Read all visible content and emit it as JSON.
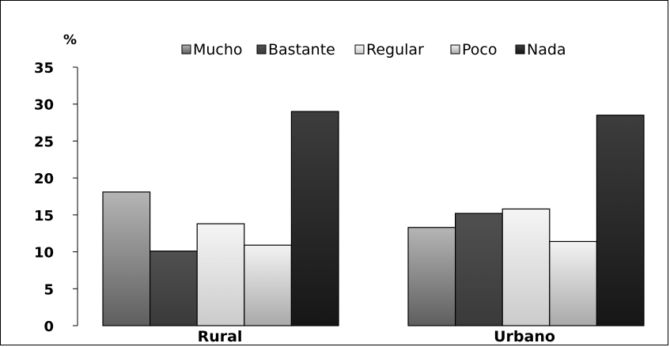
{
  "chart_data": {
    "type": "bar",
    "unit_label": "%",
    "categories": [
      "Rural",
      "Urbano"
    ],
    "series": [
      {
        "name": "Mucho",
        "values": [
          18.1,
          13.3
        ]
      },
      {
        "name": "Bastante",
        "values": [
          10.1,
          15.2
        ]
      },
      {
        "name": "Regular",
        "values": [
          13.8,
          15.8
        ]
      },
      {
        "name": "Poco",
        "values": [
          10.9,
          11.4
        ]
      },
      {
        "name": "Nada",
        "values": [
          29.0,
          28.5
        ]
      }
    ],
    "series_colors": [
      {
        "top": "#b5b5b5",
        "bottom": "#5e5e5e"
      },
      {
        "top": "#505050",
        "bottom": "#3a3a3a"
      },
      {
        "top": "#f5f5f5",
        "bottom": "#cbcbcb"
      },
      {
        "top": "#f3f3f3",
        "bottom": "#a9a9a9"
      },
      {
        "top": "#3d3d3d",
        "bottom": "#161616"
      }
    ],
    "ylim": [
      0,
      35
    ],
    "yticks": [
      "0",
      "5",
      "10",
      "15",
      "20",
      "25",
      "30",
      "35"
    ],
    "grid": false,
    "legend_position": "top"
  }
}
